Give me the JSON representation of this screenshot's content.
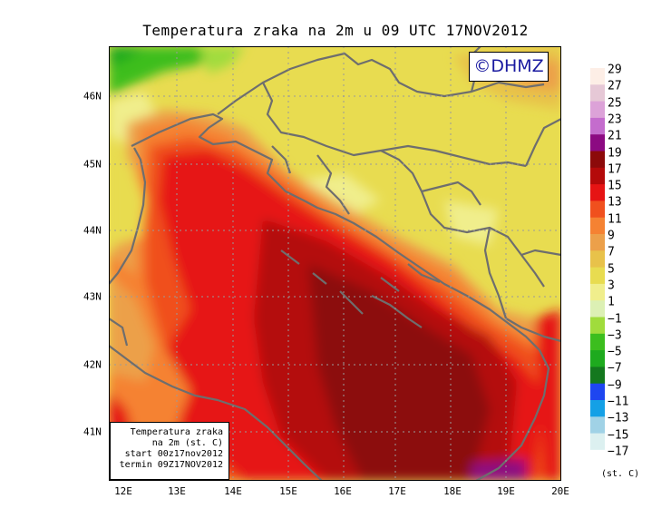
{
  "title": "Temperatura zraka na 2m u 09 UTC 17NOV2012",
  "logo": "©DHMZ",
  "lon_ticks": [
    "12E",
    "13E",
    "14E",
    "15E",
    "16E",
    "17E",
    "18E",
    "19E",
    "20E"
  ],
  "lat_ticks": [
    "46N",
    "45N",
    "44N",
    "43N",
    "42N",
    "41N"
  ],
  "legend": {
    "unit": "(st. C)",
    "levels": [
      {
        "label": "29",
        "color": "#fdeee6"
      },
      {
        "label": "27",
        "color": "#e6c8d6"
      },
      {
        "label": "25",
        "color": "#dca2d8"
      },
      {
        "label": "23",
        "color": "#c46ccd"
      },
      {
        "label": "21",
        "color": "#8c0a82"
      },
      {
        "label": "19",
        "color": "#8c0a0a"
      },
      {
        "label": "17",
        "color": "#b40a0a"
      },
      {
        "label": "15",
        "color": "#e61414"
      },
      {
        "label": "13",
        "color": "#f0501e"
      },
      {
        "label": "11",
        "color": "#f58232"
      },
      {
        "label": "9",
        "color": "#eca04a"
      },
      {
        "label": "7",
        "color": "#e8c24a"
      },
      {
        "label": "5",
        "color": "#e8dc50"
      },
      {
        "label": "3",
        "color": "#f0ee8c"
      },
      {
        "label": "1",
        "color": "#dcf0b4"
      },
      {
        "label": "−1",
        "color": "#a0dc3c"
      },
      {
        "label": "−3",
        "color": "#3cbe1e"
      },
      {
        "label": "−5",
        "color": "#1eaa1e"
      },
      {
        "label": "−7",
        "color": "#14781e"
      },
      {
        "label": "−9",
        "color": "#1e46f0"
      },
      {
        "label": "−11",
        "color": "#14a0e6"
      },
      {
        "label": "−13",
        "color": "#a0d2e6"
      },
      {
        "label": "−15",
        "color": "#dcf0f0"
      },
      {
        "label": "−17",
        "color": "#ffffff"
      }
    ]
  },
  "info_box": {
    "line1": "Temperatura zraka",
    "line2": "na 2m (st. C)",
    "line3": "start 00z17nov2012",
    "line4": "termin 09Z17NOV2012"
  }
}
